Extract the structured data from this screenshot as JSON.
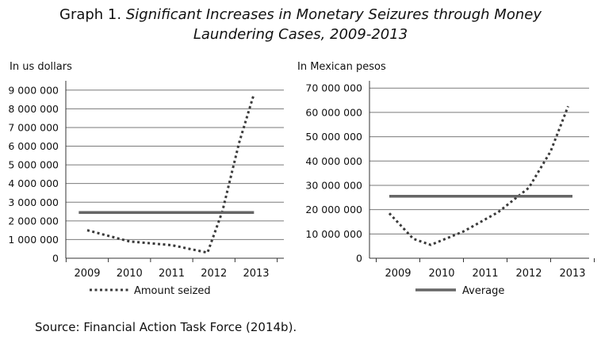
{
  "title": {
    "prefix": "Graph 1.",
    "line1": "Significant Increases in Monetary Seizures through Money",
    "line2": "Laundering Cases, 2009-2013"
  },
  "source": "Source: Financial Action Task Force (2014b).",
  "colors": {
    "series": "#3a3a3a",
    "average": "#666666",
    "grid": "#7a7a7a"
  },
  "chart_data": [
    {
      "type": "line",
      "title": "",
      "ylabel": "In us dollars",
      "xlabel": "",
      "categories": [
        "2009",
        "2010",
        "2011",
        "2012",
        "2013"
      ],
      "ylim": [
        0,
        9500000
      ],
      "yticks": [
        0,
        1000000,
        2000000,
        3000000,
        4000000,
        5000000,
        6000000,
        7000000,
        8000000,
        9000000
      ],
      "ytick_labels": [
        "0",
        "1 000 000",
        "2 000 000",
        "3 000 000",
        "4 000 000",
        "5 000 000",
        "6 000 000",
        "7 000 000",
        "8 000 000",
        "9 000 000"
      ],
      "grid": true,
      "series": [
        {
          "name": "Amount seized",
          "style": "dotted",
          "points": [
            [
              0,
              1500000
            ],
            [
              1,
              900000
            ],
            [
              2,
              700000
            ],
            [
              2.85,
              300000
            ],
            [
              3.2,
              2500000
            ],
            [
              3.6,
              6200000
            ],
            [
              3.95,
              8800000
            ]
          ]
        },
        {
          "name": "",
          "style": "solid",
          "points": [
            [
              -0.2,
              2450000
            ],
            [
              3.95,
              2450000
            ]
          ]
        }
      ],
      "legend": {
        "label": "Amount seized",
        "style": "dotted",
        "placement": "bottom"
      }
    },
    {
      "type": "line",
      "title": "",
      "ylabel": "In Mexican pesos",
      "xlabel": "",
      "categories": [
        "2009",
        "2010",
        "2011",
        "2012",
        "2013"
      ],
      "ylim": [
        0,
        73000000
      ],
      "yticks": [
        0,
        10000000,
        20000000,
        30000000,
        40000000,
        50000000,
        60000000,
        70000000
      ],
      "ytick_labels": [
        "0",
        "10 000 000",
        "20 000 000",
        "30 000 000",
        "40 000 000",
        "50 000 000",
        "60 000 000",
        "70 000 000"
      ],
      "grid": true,
      "series": [
        {
          "name": "",
          "style": "dotted",
          "points": [
            [
              -0.2,
              18500000
            ],
            [
              0.35,
              8000000
            ],
            [
              0.75,
              5500000
            ],
            [
              1.5,
              11000000
            ],
            [
              2.3,
              19000000
            ],
            [
              3.0,
              29000000
            ],
            [
              3.5,
              44000000
            ],
            [
              3.9,
              62500000
            ]
          ]
        },
        {
          "name": "Average",
          "style": "solid",
          "points": [
            [
              -0.2,
              25500000
            ],
            [
              4.0,
              25500000
            ]
          ]
        }
      ],
      "legend": {
        "label": "Average",
        "style": "solid",
        "placement": "bottom"
      }
    }
  ]
}
